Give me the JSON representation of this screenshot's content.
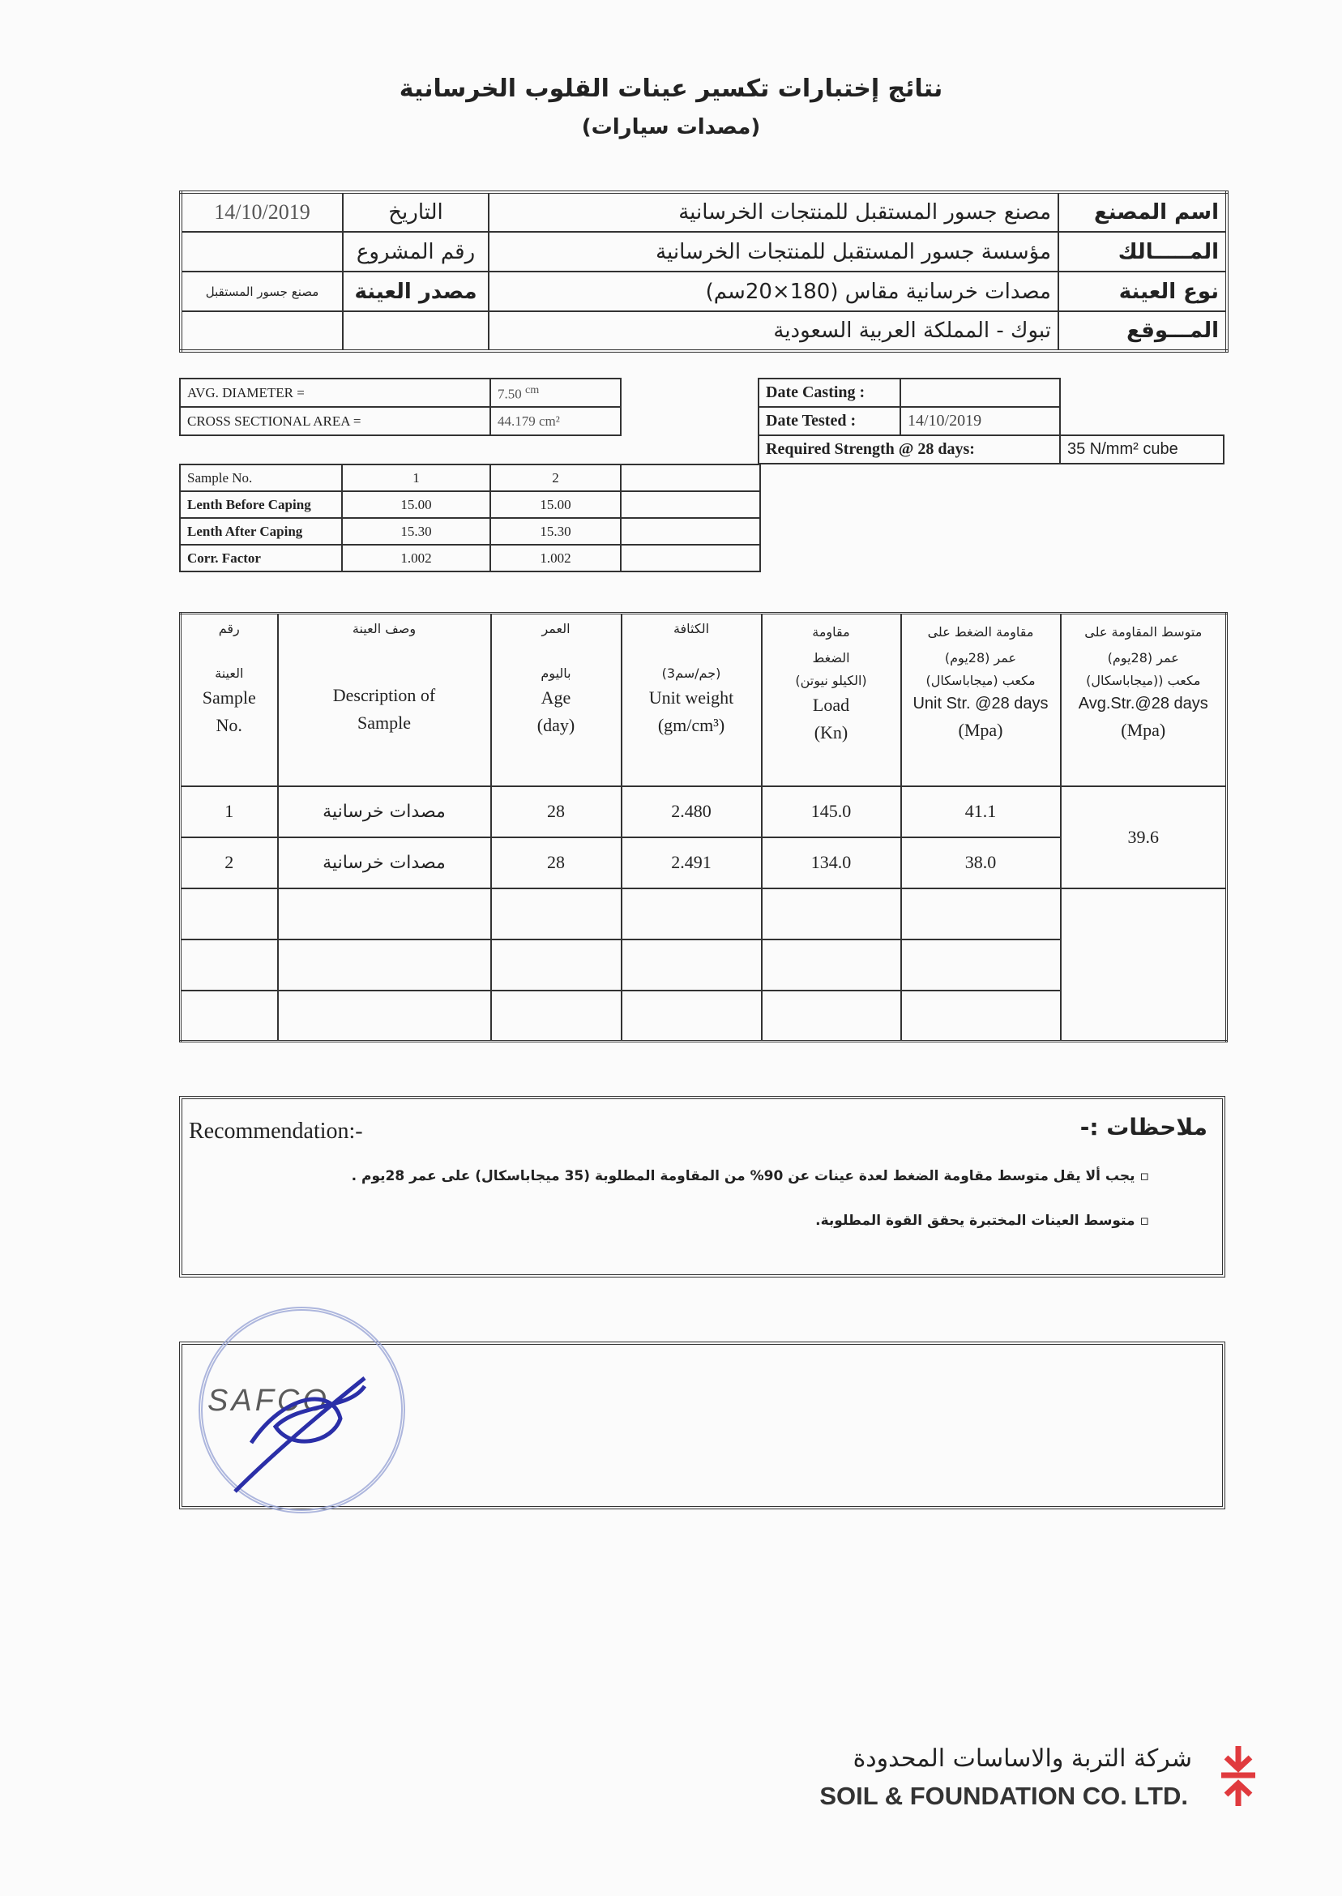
{
  "title": "نتائج إختبارات تكسير عينات القلوب الخرسانية",
  "subtitle": "(مصدات سيارات)",
  "info": {
    "factory_label": "اسم المصنع",
    "factory_value": "مصنع جسور المستقبل للمنتجات الخرسانية",
    "date_label": "التاريخ",
    "date_value": "14/10/2019",
    "owner_label": "المـــــالك",
    "owner_value": "مؤسسة جسور المستقبل للمنتجات الخرسانية",
    "project_label": "رقم المشروع",
    "project_value": "",
    "type_label": "نوع العينة",
    "type_value": "مصدات خرسانية مقاس (180×20سم)",
    "source_label": "مصدر العينة",
    "source_value": "مصنع جسور المستقبل",
    "location_label": "المـــوقع",
    "location_value": "تبوك - المملكة العربية السعودية"
  },
  "diameter": {
    "avg_label": "AVG. DIAMETER =",
    "avg_value": "7.50",
    "avg_unit": "cm",
    "area_label": "CROSS SECTIONAL AREA =",
    "area_value": "44.179",
    "area_unit": "cm²"
  },
  "dates": {
    "casting_label": "Date Casting :",
    "casting_value": "",
    "tested_label": "Date Tested :",
    "tested_value": "14/10/2019",
    "required_label": "Required Strength @ 28 days:",
    "required_value": "35 N/mm² cube"
  },
  "samples": {
    "rows": [
      {
        "label": "Sample No.",
        "v1": "1",
        "v2": "2"
      },
      {
        "label": "Lenth Before Caping",
        "v1": "15.00",
        "v2": "15.00"
      },
      {
        "label": "Lenth After Caping",
        "v1": "15.30",
        "v2": "15.30"
      },
      {
        "label": "Corr. Factor",
        "v1": "1.002",
        "v2": "1.002"
      }
    ]
  },
  "results": {
    "headers": [
      {
        "ar1": "رقم",
        "ar2": "العينة",
        "en1": "Sample",
        "en2": "No."
      },
      {
        "ar1": "وصف العينة",
        "ar2": "",
        "en1": "Description of",
        "en2": "Sample"
      },
      {
        "ar1": "العمر",
        "ar2": "باليوم",
        "en1": "Age",
        "en2": "(day)"
      },
      {
        "ar1": "الكثافة",
        "ar2": "(جم/سم3)",
        "en1": "Unit weight",
        "en2": "(gm/cm³)"
      },
      {
        "ar1": "مقاومة الضغط",
        "ar2": "(الكيلو نيوتن)",
        "en1": "Load",
        "en2": "(Kn)"
      },
      {
        "ar1": "مقاومة الضغط على عمر (28يوم)",
        "ar2": "مكعب (ميجاباسكال)",
        "en1": "Unit Str. @28 days",
        "en2": "(Mpa)"
      },
      {
        "ar1": "متوسط المقاومة على عمر (28يوم)",
        "ar2": "مكعب ((ميجاباسكال)",
        "en1": "Avg.Str.@28 days",
        "en2": "(Mpa)"
      }
    ],
    "rows": [
      {
        "no": "1",
        "desc": "مصدات خرسانية",
        "age": "28",
        "weight": "2.480",
        "load": "145.0",
        "str": "41.1"
      },
      {
        "no": "2",
        "desc": "مصدات خرسانية",
        "age": "28",
        "weight": "2.491",
        "load": "134.0",
        "str": "38.0"
      }
    ],
    "average": "39.6"
  },
  "recommendation": {
    "en_label": "Recommendation:-",
    "ar_label": "ملاحظات :-",
    "items": [
      "يجب ألا يقل متوسط مقاومة الضغط لعدة عينات عن 90% من المقاومة المطلوبة (35 ميجاباسكال) على عمر 28يوم .",
      "متوسط العينات المختبرة يحقق القوة المطلوبة."
    ]
  },
  "stamp": {
    "text": "SAFCO"
  },
  "logo": {
    "ar": "شركة التربة والاساسات المحدودة",
    "en": "SOIL & FOUNDATION CO. LTD.",
    "color": "#e03a3e"
  }
}
